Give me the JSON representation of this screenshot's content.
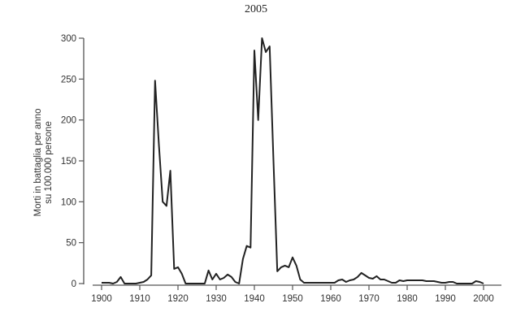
{
  "chart_data": {
    "type": "line",
    "title": "2005",
    "xlabel": "",
    "ylabel": [
      "Morti in battaglia per anno",
      "su 100.000 persone"
    ],
    "xlim": [
      1898,
      2005
    ],
    "ylim": [
      0,
      300
    ],
    "xticks": [
      1900,
      1910,
      1920,
      1930,
      1940,
      1950,
      1960,
      1970,
      1980,
      1990,
      2000
    ],
    "yticks": [
      0,
      50,
      100,
      150,
      200,
      250,
      300
    ],
    "grid": false,
    "series": [
      {
        "color": "#222222",
        "x": [
          1900,
          1901,
          1902,
          1903,
          1904,
          1905,
          1906,
          1907,
          1908,
          1909,
          1910,
          1911,
          1912,
          1913,
          1914,
          1915,
          1916,
          1917,
          1918,
          1919,
          1920,
          1921,
          1922,
          1923,
          1924,
          1925,
          1926,
          1927,
          1928,
          1929,
          1930,
          1931,
          1932,
          1933,
          1934,
          1935,
          1936,
          1937,
          1938,
          1939,
          1940,
          1941,
          1942,
          1943,
          1944,
          1945,
          1946,
          1947,
          1948,
          1949,
          1950,
          1951,
          1952,
          1953,
          1954,
          1955,
          1956,
          1957,
          1958,
          1959,
          1960,
          1961,
          1962,
          1963,
          1964,
          1965,
          1966,
          1967,
          1968,
          1969,
          1970,
          1971,
          1972,
          1973,
          1974,
          1975,
          1976,
          1977,
          1978,
          1979,
          1980,
          1981,
          1982,
          1983,
          1984,
          1985,
          1986,
          1987,
          1988,
          1989,
          1990,
          1991,
          1992,
          1993,
          1994,
          1995,
          1996,
          1997,
          1998,
          1999,
          2000
        ],
        "y": [
          1,
          1,
          1,
          0,
          2,
          8,
          0,
          0,
          0,
          0,
          1,
          2,
          5,
          10,
          248,
          170,
          100,
          95,
          138,
          18,
          20,
          12,
          0,
          0,
          0,
          0,
          0,
          0,
          16,
          5,
          12,
          5,
          7,
          11,
          8,
          2,
          0,
          30,
          46,
          44,
          285,
          200,
          300,
          283,
          290,
          150,
          15,
          20,
          22,
          20,
          32,
          22,
          5,
          1,
          1,
          1,
          1,
          1,
          1,
          1,
          1,
          1,
          4,
          5,
          2,
          4,
          5,
          8,
          13,
          10,
          7,
          6,
          9,
          5,
          5,
          3,
          1,
          1,
          4,
          3,
          4,
          4,
          4,
          4,
          4,
          3,
          3,
          3,
          2,
          1,
          1,
          2,
          2,
          0,
          0,
          0,
          0,
          0,
          3,
          2,
          0
        ]
      }
    ]
  }
}
